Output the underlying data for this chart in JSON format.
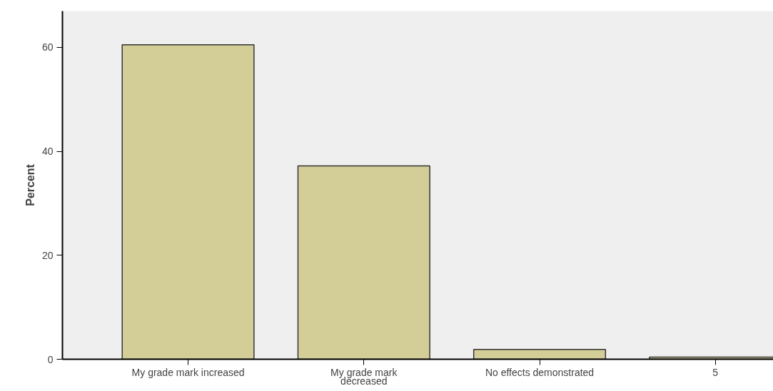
{
  "chart_data": {
    "type": "bar",
    "ylabel": "Percent",
    "categories": [
      "My grade mark increased",
      "My grade mark\ndecreased",
      "No effects demonstrated",
      "5"
    ],
    "values": [
      60.5,
      37.2,
      1.9,
      0.4
    ],
    "color": "#d3ce98",
    "ylim": [
      0,
      67
    ],
    "yticks": [
      0,
      20,
      40,
      60
    ],
    "grid": false
  }
}
